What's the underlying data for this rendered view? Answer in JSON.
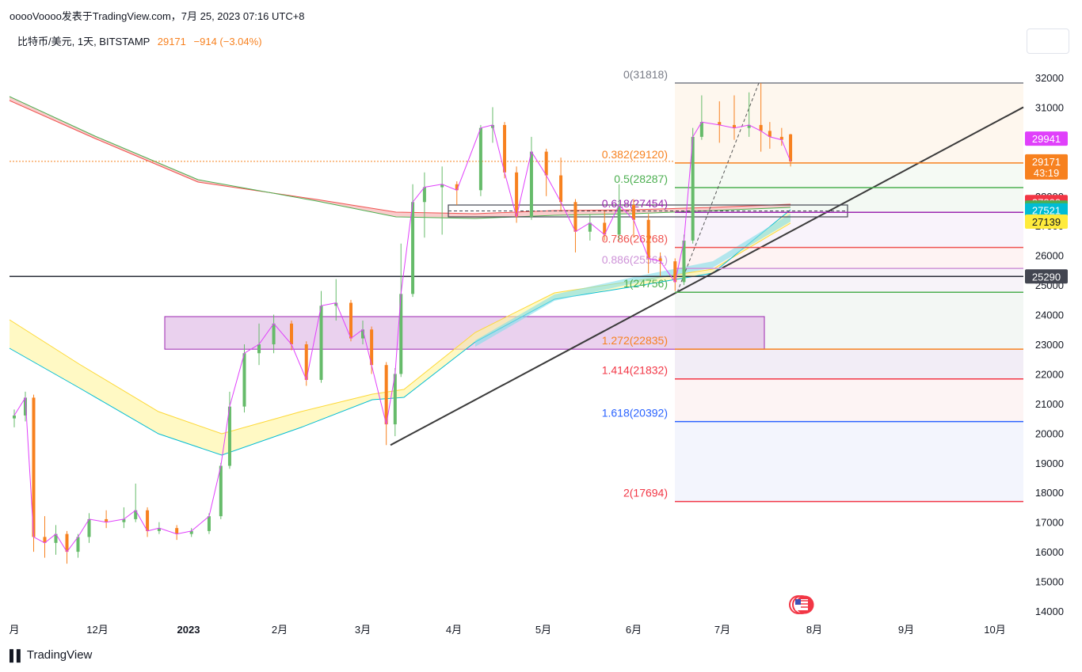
{
  "header": {
    "published": "ooooVoooo发表于TradingView.com，7月 25, 2023 07:16 UTC+8"
  },
  "symbol": {
    "name": "比特币/美元, 1天, BITSTAMP",
    "last": "29171",
    "change": "−914 (−3.04%)"
  },
  "footer": {
    "brand": "TradingView"
  },
  "chart_data": {
    "type": "candlestick",
    "instrument": "比特币/美元",
    "interval": "1天",
    "exchange": "BITSTAMP",
    "ylim": [
      14000,
      32500
    ],
    "y_ticks": [
      "14000",
      "15000",
      "16000",
      "17000",
      "18000",
      "19000",
      "20000",
      "21000",
      "22000",
      "23000",
      "24000",
      "25000",
      "26000",
      "27000",
      "28000",
      "29000",
      "30000",
      "31000",
      "32000"
    ],
    "x_ticks": [
      "月",
      "12月",
      "2023",
      "2月",
      "3月",
      "4月",
      "5月",
      "6月",
      "7月",
      "8月",
      "9月",
      "10月"
    ],
    "price_labels": [
      {
        "text": "29941",
        "value": 29941,
        "color": "#e040fb"
      },
      {
        "text": "29171",
        "value": 29171,
        "color": "#f7811f",
        "sub": "43:19"
      },
      {
        "text": "27800",
        "value": 27800,
        "color": "#f23645"
      },
      {
        "text": "27614",
        "value": 27614,
        "color": "#4caf50"
      },
      {
        "text": "27521",
        "value": 27521,
        "color": "#00bcd4"
      },
      {
        "text": "27139",
        "value": 27139,
        "color": "#ffeb3b",
        "textColor": "#131722"
      },
      {
        "text": "25290",
        "value": 25290,
        "color": "#434651"
      }
    ],
    "fibonacci": [
      {
        "label": "0(31818)",
        "value": 31818,
        "color": "#787b86"
      },
      {
        "label": "0.382(29120)",
        "value": 29120,
        "color": "#f7811f"
      },
      {
        "label": "0.5(28287)",
        "value": 28287,
        "color": "#4caf50"
      },
      {
        "label": "0.618(27454)",
        "value": 27454,
        "color": "#9c27b0"
      },
      {
        "label": "0.786(26268)",
        "value": 26268,
        "color": "#ef5350"
      },
      {
        "label": "0.886(25561)",
        "value": 25561,
        "color": "#ce93d8"
      },
      {
        "label": "1(24756)",
        "value": 24756,
        "color": "#4caf50"
      },
      {
        "label": "1.272(22835)",
        "value": 22835,
        "color": "#f7811f"
      },
      {
        "label": "1.414(21832)",
        "value": 21832,
        "color": "#f23645"
      },
      {
        "label": "1.618(20392)",
        "value": 20392,
        "color": "#2962ff"
      },
      {
        "label": "2(17694)",
        "value": 17694,
        "color": "#f23645"
      }
    ],
    "horizontal_line": 25290,
    "current_price": 29171,
    "trendline": {
      "start": [
        "3月",
        19600
      ],
      "end": [
        "10月",
        31000
      ]
    },
    "highlight_zone": {
      "low": 22835,
      "high": 23935,
      "start": "12月",
      "end": "7月"
    },
    "candles_ohlc": [
      [
        "11/1",
        20500,
        20800,
        20200,
        20600
      ],
      [
        "11/5",
        20600,
        21400,
        20400,
        21200
      ],
      [
        "11/8",
        21200,
        21300,
        16000,
        16500
      ],
      [
        "11/12",
        16500,
        17200,
        15800,
        16300
      ],
      [
        "11/16",
        16300,
        16900,
        15900,
        16600
      ],
      [
        "11/20",
        16600,
        16700,
        15600,
        16000
      ],
      [
        "11/24",
        16000,
        16600,
        15800,
        16500
      ],
      [
        "11/28",
        16500,
        17300,
        16300,
        17100
      ],
      [
        "12/4",
        17100,
        17400,
        16800,
        17000
      ],
      [
        "12/10",
        17000,
        17500,
        16800,
        17100
      ],
      [
        "12/14",
        17100,
        18300,
        17000,
        17400
      ],
      [
        "12/18",
        17400,
        17500,
        16500,
        16700
      ],
      [
        "12/22",
        16700,
        17000,
        16600,
        16800
      ],
      [
        "12/28",
        16800,
        16900,
        16400,
        16600
      ],
      [
        "1/2",
        16600,
        16800,
        16500,
        16700
      ],
      [
        "1/8",
        16700,
        17300,
        16600,
        17200
      ],
      [
        "1/12",
        17200,
        19000,
        17100,
        18900
      ],
      [
        "1/15",
        18900,
        21400,
        18800,
        20900
      ],
      [
        "1/20",
        20900,
        23000,
        20700,
        22700
      ],
      [
        "1/25",
        22700,
        23700,
        22300,
        23000
      ],
      [
        "1/30",
        23000,
        24000,
        22700,
        23700
      ],
      [
        "2/5",
        23700,
        23800,
        22800,
        23000
      ],
      [
        "2/10",
        23000,
        23100,
        21600,
        21800
      ],
      [
        "2/15",
        21800,
        24800,
        21700,
        24300
      ],
      [
        "2/20",
        24300,
        25200,
        23800,
        24400
      ],
      [
        "2/25",
        24400,
        24500,
        23100,
        23200
      ],
      [
        "3/1",
        23200,
        23800,
        23000,
        23500
      ],
      [
        "3/4",
        23500,
        23600,
        22000,
        22300
      ],
      [
        "3/9",
        22300,
        22400,
        19600,
        20300
      ],
      [
        "3/12",
        20300,
        22200,
        19900,
        22000
      ],
      [
        "3/14",
        22000,
        26400,
        21900,
        24700
      ],
      [
        "3/18",
        24700,
        28400,
        24600,
        27800
      ],
      [
        "3/22",
        27800,
        28800,
        26600,
        28300
      ],
      [
        "3/28",
        28300,
        29000,
        26700,
        28400
      ],
      [
        "4/2",
        28400,
        28500,
        27700,
        28200
      ],
      [
        "4/10",
        28200,
        30400,
        28000,
        30300
      ],
      [
        "4/14",
        30300,
        31000,
        29800,
        30400
      ],
      [
        "4/18",
        30400,
        30500,
        28600,
        28800
      ],
      [
        "4/22",
        28800,
        29000,
        27100,
        27300
      ],
      [
        "4/27",
        27300,
        30000,
        27200,
        29500
      ],
      [
        "5/2",
        29500,
        29600,
        28000,
        28700
      ],
      [
        "5/7",
        28700,
        29300,
        27500,
        27800
      ],
      [
        "5/12",
        27800,
        27900,
        26100,
        26800
      ],
      [
        "5/17",
        26800,
        27400,
        26500,
        27100
      ],
      [
        "5/22",
        27100,
        27500,
        26500,
        26700
      ],
      [
        "5/27",
        26700,
        28400,
        26500,
        27700
      ],
      [
        "6/1",
        27700,
        27900,
        26600,
        27200
      ],
      [
        "6/6",
        27200,
        27400,
        25400,
        25900
      ],
      [
        "6/10",
        25900,
        26100,
        25300,
        25800
      ],
      [
        "6/15",
        25800,
        25900,
        24800,
        25100
      ],
      [
        "6/18",
        25100,
        26700,
        25000,
        26500
      ],
      [
        "6/21",
        26500,
        30300,
        26400,
        30000
      ],
      [
        "6/24",
        30000,
        31400,
        29900,
        30500
      ],
      [
        "6/30",
        30500,
        31200,
        29800,
        30400
      ],
      [
        "7/5",
        30400,
        31400,
        29900,
        30300
      ],
      [
        "7/10",
        30300,
        31500,
        30000,
        30400
      ],
      [
        "7/14",
        30400,
        31818,
        29500,
        30200
      ],
      [
        "7/17",
        30200,
        30500,
        29600,
        30000
      ],
      [
        "7/21",
        30000,
        30300,
        29700,
        29900
      ],
      [
        "7/24",
        30085,
        30100,
        29000,
        29171
      ]
    ]
  }
}
